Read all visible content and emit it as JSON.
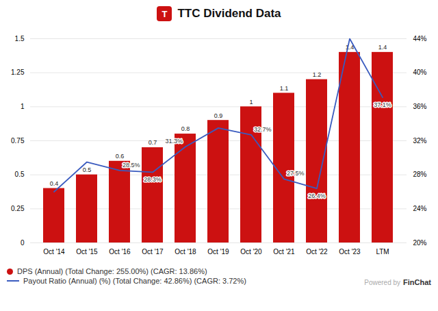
{
  "chart_data": {
    "type": "bar",
    "title": "TTC Dividend Data",
    "annotations": [
      "T",
      "Powered by",
      "FinChat"
    ],
    "categories": [
      "Oct '14",
      "Oct '15",
      "Oct '16",
      "Oct '17",
      "Oct '18",
      "Oct '19",
      "Oct '20",
      "Oct '21",
      "Oct '22",
      "Oct '23",
      "LTM"
    ],
    "series": [
      {
        "name": "DPS (Annual) (Total Change: 255.00%) (CAGR: 13.86%)",
        "type": "bar",
        "color": "#cc1111",
        "values": [
          0.4,
          0.5,
          0.6,
          0.7,
          0.8,
          0.9,
          1.0,
          1.1,
          1.2,
          1.4,
          1.4
        ]
      },
      {
        "name": "Payout Ratio (Annual) (%) (Total Change: 42.86%) (CAGR: 3.72%)",
        "type": "line",
        "color": "#3a5bbf",
        "axis": "y2",
        "values": [
          26.0,
          29.5,
          28.5,
          28.3,
          31.3,
          33.5,
          32.7,
          27.5,
          26.4,
          44.0,
          37.1
        ],
        "value_labels": [
          null,
          null,
          "28.5%",
          "28.3%",
          "31.3%",
          null,
          "32.7%",
          "27.5%",
          "26.4%",
          null,
          "37.1%"
        ]
      }
    ],
    "ylim": [
      0,
      1.5
    ],
    "yticks": [
      0,
      0.25,
      0.5,
      0.75,
      1,
      1.25,
      1.5
    ],
    "y2lim": [
      20,
      44
    ],
    "y2ticks": [
      {
        "value": 20,
        "label": "20%"
      },
      {
        "value": 24,
        "label": "24%"
      },
      {
        "value": 28,
        "label": "28%"
      },
      {
        "value": 32,
        "label": "32%"
      },
      {
        "value": 36,
        "label": "36%"
      },
      {
        "value": 40,
        "label": "40%"
      },
      {
        "value": 44,
        "label": "44%"
      }
    ],
    "grid": true,
    "legend": "lower left",
    "data_labels": true
  }
}
